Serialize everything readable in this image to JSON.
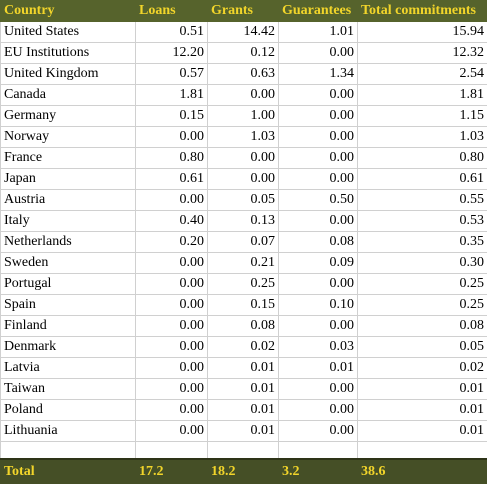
{
  "table": {
    "columns": [
      "Country",
      "Loans",
      "Grants",
      "Guarantees",
      "Total commitments"
    ],
    "rows": [
      [
        "United States",
        "0.51",
        "14.42",
        "1.01",
        "15.94"
      ],
      [
        "EU Institutions",
        "12.20",
        "0.12",
        "0.00",
        "12.32"
      ],
      [
        "United Kingdom",
        "0.57",
        "0.63",
        "1.34",
        "2.54"
      ],
      [
        "Canada",
        "1.81",
        "0.00",
        "0.00",
        "1.81"
      ],
      [
        "Germany",
        "0.15",
        "1.00",
        "0.00",
        "1.15"
      ],
      [
        "Norway",
        "0.00",
        "1.03",
        "0.00",
        "1.03"
      ],
      [
        "France",
        "0.80",
        "0.00",
        "0.00",
        "0.80"
      ],
      [
        "Japan",
        "0.61",
        "0.00",
        "0.00",
        "0.61"
      ],
      [
        "Austria",
        "0.00",
        "0.05",
        "0.50",
        "0.55"
      ],
      [
        "Italy",
        "0.40",
        "0.13",
        "0.00",
        "0.53"
      ],
      [
        "Netherlands",
        "0.20",
        "0.07",
        "0.08",
        "0.35"
      ],
      [
        "Sweden",
        "0.00",
        "0.21",
        "0.09",
        "0.30"
      ],
      [
        "Portugal",
        "0.00",
        "0.25",
        "0.00",
        "0.25"
      ],
      [
        "Spain",
        "0.00",
        "0.15",
        "0.10",
        "0.25"
      ],
      [
        "Finland",
        "0.00",
        "0.08",
        "0.00",
        "0.08"
      ],
      [
        "Denmark",
        "0.00",
        "0.02",
        "0.03",
        "0.05"
      ],
      [
        "Latvia",
        "0.00",
        "0.01",
        "0.01",
        "0.02"
      ],
      [
        "Taiwan",
        "0.00",
        "0.01",
        "0.00",
        "0.01"
      ],
      [
        "Poland",
        "0.00",
        "0.01",
        "0.00",
        "0.01"
      ],
      [
        "Lithuania",
        "0.00",
        "0.01",
        "0.00",
        "0.01"
      ]
    ],
    "total": [
      "Total",
      "17.2",
      "18.2",
      "3.2",
      "38.6"
    ]
  }
}
